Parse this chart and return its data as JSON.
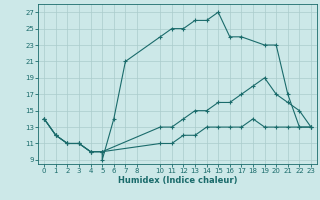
{
  "xlabel": "Humidex (Indice chaleur)",
  "bg_color": "#cce8e8",
  "line_color": "#1a6b6b",
  "grid_color": "#aacccc",
  "xlim": [
    -0.5,
    23.5
  ],
  "ylim": [
    8.5,
    28
  ],
  "xticks": [
    0,
    1,
    2,
    3,
    4,
    5,
    6,
    7,
    8,
    10,
    11,
    12,
    13,
    14,
    15,
    16,
    17,
    18,
    19,
    20,
    21,
    22,
    23
  ],
  "yticks": [
    9,
    11,
    13,
    15,
    17,
    19,
    21,
    23,
    25,
    27
  ],
  "line1_x": [
    0,
    1,
    2,
    3,
    4,
    5,
    5,
    6,
    7,
    10,
    11,
    12,
    13,
    14,
    15,
    16,
    17,
    19,
    20,
    21,
    22,
    23
  ],
  "line1_y": [
    14,
    12,
    11,
    11,
    10,
    10,
    9,
    14,
    21,
    24,
    25,
    25,
    26,
    26,
    27,
    24,
    24,
    23,
    23,
    17,
    13,
    13
  ],
  "line2_x": [
    0,
    1,
    2,
    3,
    4,
    5,
    10,
    11,
    12,
    13,
    14,
    15,
    16,
    17,
    18,
    19,
    20,
    21,
    22,
    23
  ],
  "line2_y": [
    14,
    12,
    11,
    11,
    10,
    10,
    13,
    13,
    14,
    15,
    15,
    16,
    16,
    17,
    18,
    19,
    17,
    16,
    15,
    13
  ],
  "line3_x": [
    0,
    1,
    2,
    3,
    4,
    5,
    10,
    11,
    12,
    13,
    14,
    15,
    16,
    17,
    18,
    19,
    20,
    21,
    22,
    23
  ],
  "line3_y": [
    14,
    12,
    11,
    11,
    10,
    10,
    11,
    11,
    12,
    12,
    13,
    13,
    13,
    13,
    14,
    13,
    13,
    13,
    13,
    13
  ]
}
